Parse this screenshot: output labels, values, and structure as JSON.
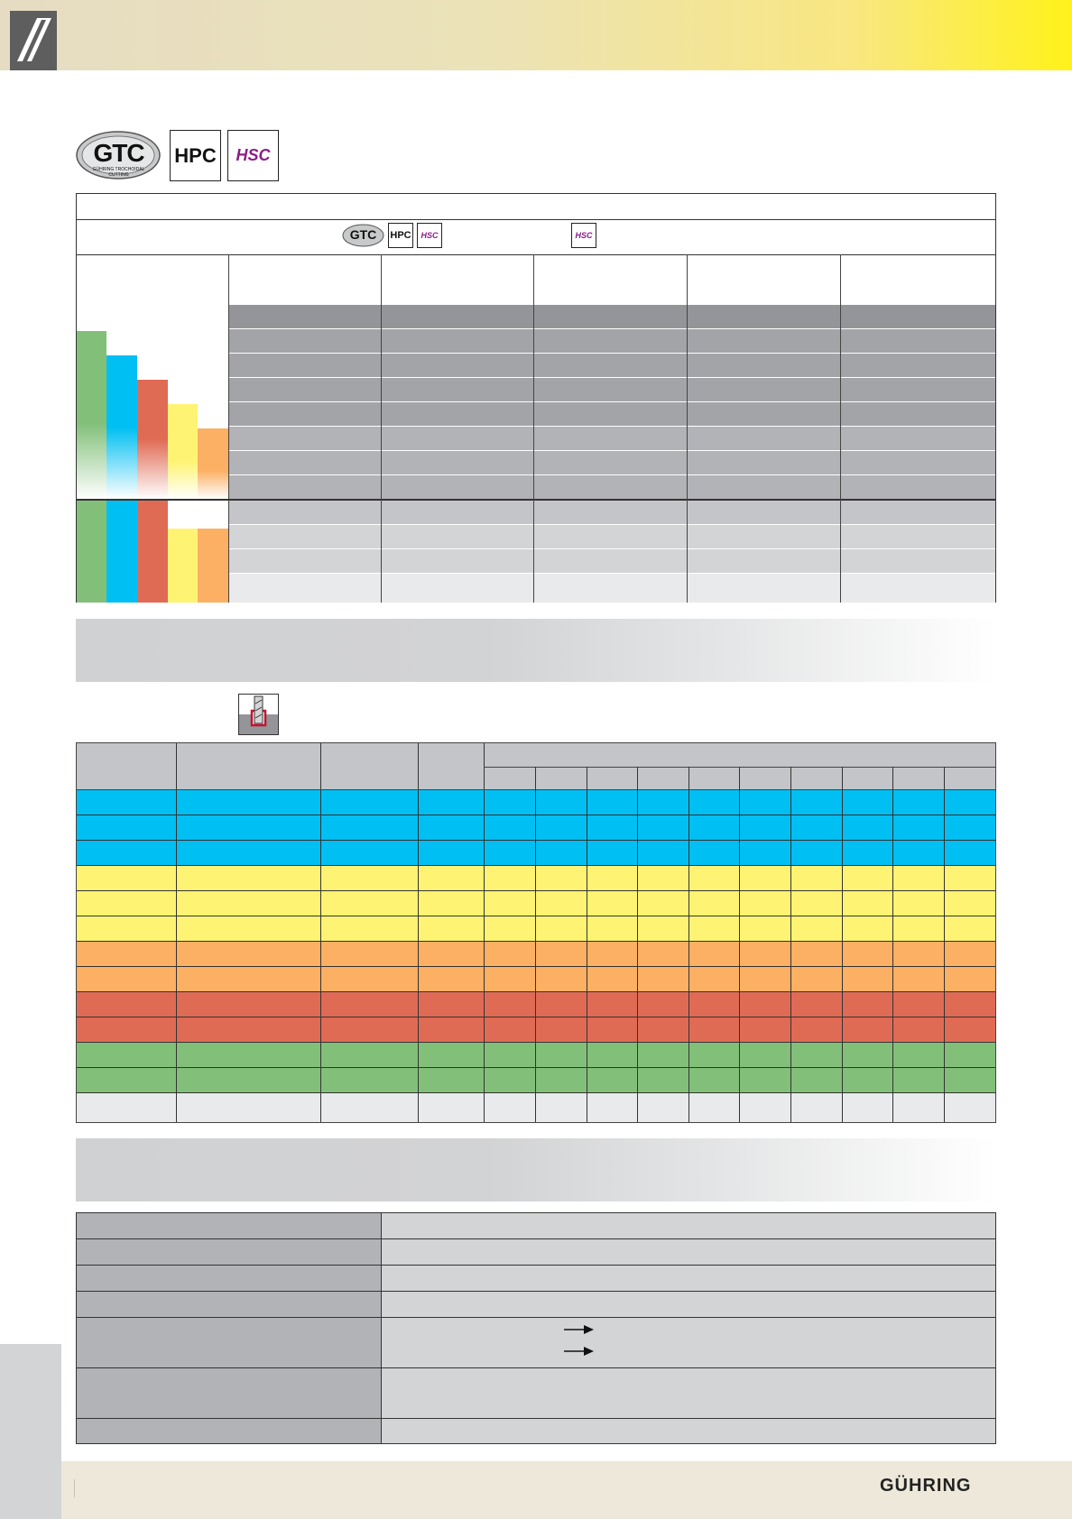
{
  "badges": {
    "gtc": "GTC",
    "gtc_caption": "GÜHRING TROCHOIDAL CUTTING",
    "hpc": "HPC",
    "hsc": "HSC"
  },
  "brand": "GÜHRING",
  "colors": {
    "green": "#82c07a",
    "blue": "#00bff2",
    "red": "#e06b55",
    "yellow": "#fff373",
    "orange": "#fbb064",
    "gray_dark": "#949599",
    "gray_mid": "#b2b3b7",
    "gray_light": "#d3d4d6",
    "gray_lightest": "#e9eaeb"
  },
  "icons": [
    "logo-mark-icon",
    "end-mill-slot-icon",
    "arrow-right-icon"
  ]
}
